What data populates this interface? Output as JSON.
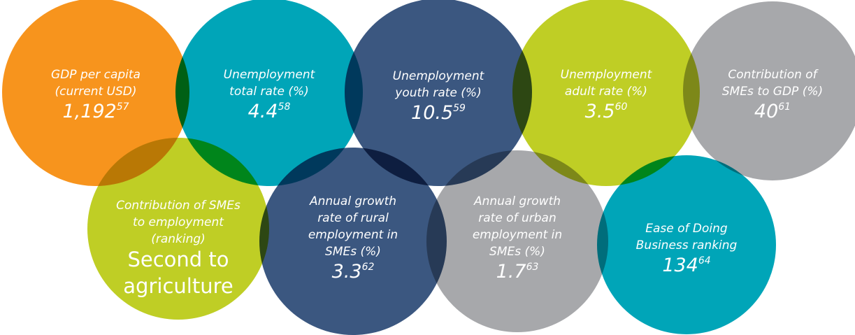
{
  "circles": [
    {
      "color": "#f7941d",
      "label": [
        "GDP per capita",
        "(current USD)"
      ],
      "value": [
        "1,192"
      ],
      "note": "57"
    },
    {
      "color": "#00a5b8",
      "label": [
        "Unemployment",
        "total rate (%)"
      ],
      "value": [
        "4.4"
      ],
      "note": "58"
    },
    {
      "color": "#3b5780",
      "label": [
        "Unemployment",
        "youth rate (%)"
      ],
      "value": [
        "10.5"
      ],
      "note": "59"
    },
    {
      "color": "#bfce25",
      "label": [
        "Unemployment",
        "adult rate (%)"
      ],
      "value": [
        "3.5"
      ],
      "note": "60"
    },
    {
      "color": "#a7a8ab",
      "label": [
        "Contribution of",
        "SMEs to GDP (%)"
      ],
      "value": [
        "40"
      ],
      "note": "61"
    },
    {
      "color": "#bfce25",
      "label": [
        "Contribution of SMEs",
        "to employment",
        "(ranking)"
      ],
      "value": [
        "Second to",
        "agriculture"
      ],
      "note": null
    },
    {
      "color": "#3b5780",
      "label": [
        "Annual growth",
        "rate of rural",
        "employment in",
        "SMEs (%)"
      ],
      "value": [
        "3.3"
      ],
      "note": "62"
    },
    {
      "color": "#a7a8ab",
      "label": [
        "Annual growth",
        "rate of urban",
        "employment in",
        "SMEs (%)"
      ],
      "value": [
        "1.7"
      ],
      "note": "63"
    },
    {
      "color": "#00a5b8",
      "label": [
        "Ease of Doing",
        "Business ranking"
      ],
      "value": [
        "134"
      ],
      "note": "64"
    }
  ]
}
